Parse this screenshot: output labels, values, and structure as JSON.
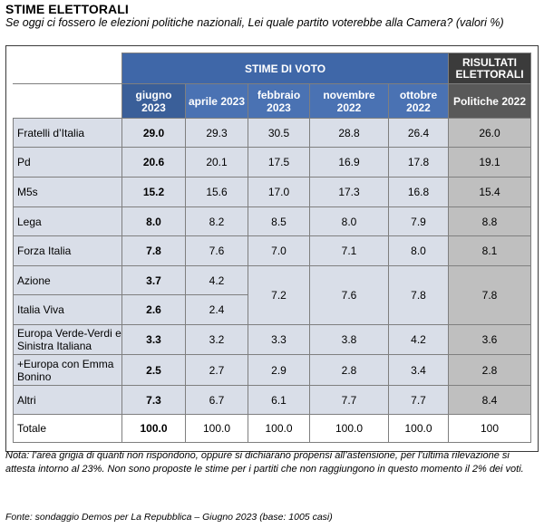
{
  "title": "STIME ELETTORALI",
  "subtitle": "Se oggi ci fossero le elezioni politiche nazionali, Lei quale partito voterebbe alla Camera? (valori %)",
  "header": {
    "group_stime": "STIME DI VOTO",
    "group_risultati": "RISULTATI ELETTORALI",
    "columns": [
      "giugno 2023",
      "aprile 2023",
      "febbraio 2023",
      "novembre 2022",
      "ottobre 2022",
      "Politiche 2022"
    ]
  },
  "note": "Nota: l’area grigia di quanti non rispondono, oppure si dichiarano propensi all’astensione, per l’ultima rilevazione si attesta intorno al 23%. Non sono proposte le stime per i partiti che non raggiungono in questo momento il 2% dei voti.",
  "source": "Fonte: sondaggio Demos per La Repubblica – Giugno 2023 (base: 1005 casi)",
  "chart_data": {
    "type": "table",
    "title": "STIME ELETTORALI",
    "columns": [
      "giugno 2023",
      "aprile 2023",
      "febbraio 2023",
      "novembre 2022",
      "ottobre 2022",
      "Politiche 2022"
    ],
    "rows": [
      {
        "party": "Fratelli d’Italia",
        "values": [
          "29.0",
          "29.3",
          "30.5",
          "28.8",
          "26.4",
          "26.0"
        ]
      },
      {
        "party": "Pd",
        "values": [
          "20.6",
          "20.1",
          "17.5",
          "16.9",
          "17.8",
          "19.1"
        ]
      },
      {
        "party": "M5s",
        "values": [
          "15.2",
          "15.6",
          "17.0",
          "17.3",
          "16.8",
          "15.4"
        ]
      },
      {
        "party": "Lega",
        "values": [
          "8.0",
          "8.2",
          "8.5",
          "8.0",
          "7.9",
          "8.8"
        ]
      },
      {
        "party": "Forza Italia",
        "values": [
          "7.8",
          "7.6",
          "7.0",
          "7.1",
          "8.0",
          "8.1"
        ]
      },
      {
        "party": "Azione",
        "values": [
          "3.7",
          "4.2"
        ]
      },
      {
        "party": "Italia Viva",
        "values": [
          "2.6",
          "2.4"
        ]
      },
      {
        "party": "Azione + Italia Viva (combined)",
        "values": [
          "",
          "",
          "7.2",
          "7.6",
          "7.8",
          "7.8"
        ]
      },
      {
        "party": "Europa Verde-Verdi e Sinistra Italiana",
        "values": [
          "3.3",
          "3.2",
          "3.3",
          "3.8",
          "4.2",
          "3.6"
        ]
      },
      {
        "party": "+Europa con Emma Bonino",
        "values": [
          "2.5",
          "2.7",
          "2.9",
          "2.8",
          "3.4",
          "2.8"
        ]
      },
      {
        "party": "Altri",
        "values": [
          "7.3",
          "6.7",
          "6.1",
          "7.7",
          "7.7",
          "8.4"
        ]
      },
      {
        "party": "Totale",
        "values": [
          "100.0",
          "100.0",
          "100.0",
          "100.0",
          "100.0",
          "100"
        ]
      }
    ]
  },
  "table": {
    "r0": {
      "party": "Fratelli d’Italia",
      "v": [
        "29.0",
        "29.3",
        "30.5",
        "28.8",
        "26.4",
        "26.0"
      ]
    },
    "r1": {
      "party": "Pd",
      "v": [
        "20.6",
        "20.1",
        "17.5",
        "16.9",
        "17.8",
        "19.1"
      ]
    },
    "r2": {
      "party": "M5s",
      "v": [
        "15.2",
        "15.6",
        "17.0",
        "17.3",
        "16.8",
        "15.4"
      ]
    },
    "r3": {
      "party": "Lega",
      "v": [
        "8.0",
        "8.2",
        "8.5",
        "8.0",
        "7.9",
        "8.8"
      ]
    },
    "r4": {
      "party": "Forza Italia",
      "v": [
        "7.8",
        "7.6",
        "7.0",
        "7.1",
        "8.0",
        "8.1"
      ]
    },
    "r5": {
      "party": "Azione",
      "v": [
        "3.7",
        "4.2"
      ],
      "merged": [
        "7.2",
        "7.6",
        "7.8",
        "7.8"
      ]
    },
    "r6": {
      "party": "Italia Viva",
      "v": [
        "2.6",
        "2.4"
      ]
    },
    "r7": {
      "party": "Europa Verde-Verdi e Sinistra Italiana",
      "v": [
        "3.3",
        "3.2",
        "3.3",
        "3.8",
        "4.2",
        "3.6"
      ]
    },
    "r8": {
      "party": "+Europa con Emma Bonino",
      "v": [
        "2.5",
        "2.7",
        "2.9",
        "2.8",
        "3.4",
        "2.8"
      ]
    },
    "r9": {
      "party": "Altri",
      "v": [
        "7.3",
        "6.7",
        "6.1",
        "7.7",
        "7.7",
        "8.4"
      ]
    },
    "r10": {
      "party": "Totale",
      "v": [
        "100.0",
        "100.0",
        "100.0",
        "100.0",
        "100.0",
        "100"
      ]
    }
  },
  "colors": {
    "header_blue": "#3f67a8",
    "header_dark": "#3b3b3b",
    "cell_light": "#d9dee8",
    "cell_grey": "#bfbfbf"
  }
}
